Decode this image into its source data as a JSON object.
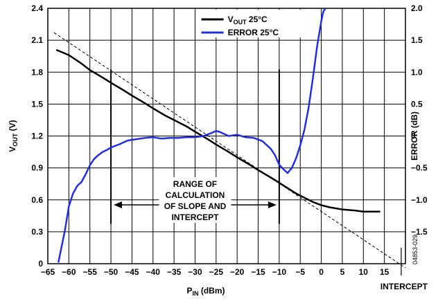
{
  "chart_data": {
    "type": "line",
    "x_axis": {
      "label_main": "P",
      "label_sub": "IN",
      "label_unit": " (dBm)",
      "range": [
        -65,
        20
      ],
      "ticks": [
        "−65",
        "−60",
        "−55",
        "−50",
        "−45",
        "−40",
        "−35",
        "−30",
        "−25",
        "−20",
        "−15",
        "−10",
        "−5",
        "0",
        "5",
        "10",
        "15"
      ],
      "tick_values": [
        -65,
        -60,
        -55,
        -50,
        -45,
        -40,
        -35,
        -30,
        -25,
        -20,
        -15,
        -10,
        -5,
        0,
        5,
        10,
        15
      ]
    },
    "y_left": {
      "label_main": "V",
      "label_sub": "OUT",
      "label_unit": " (V)",
      "range": [
        0,
        2.4
      ],
      "ticks": [
        "0",
        "0.3",
        "0.6",
        "0.9",
        "1.2",
        "1.5",
        "1.8",
        "2.1",
        "2.4"
      ],
      "tick_values": [
        0,
        0.3,
        0.6,
        0.9,
        1.2,
        1.5,
        1.8,
        2.1,
        2.4
      ]
    },
    "y_right": {
      "label": "ERROR (dB)",
      "range": [
        -2.0,
        2.0
      ],
      "ticks": [
        "2.0",
        "1.5",
        "1.0",
        "0.5",
        "0",
        "−0.5",
        "−1.0",
        "−1.5"
      ],
      "tick_values": [
        2.0,
        1.5,
        1.0,
        0.5,
        0,
        -0.5,
        -1.0,
        -1.5
      ]
    },
    "grid": true,
    "legend": {
      "placement": "top-center",
      "items": [
        {
          "main": "V",
          "sub": "OUT",
          "rest": " 25°C",
          "color": "#000000"
        },
        {
          "main": "ERROR 25°C",
          "sub": "",
          "rest": "",
          "color": "#1f2ee6"
        }
      ]
    },
    "series": [
      {
        "name": "VOUT 25°C",
        "axis": "left",
        "color": "#000000",
        "x": [
          -63,
          -60,
          -57,
          -55,
          -52,
          -50,
          -47,
          -45,
          -42,
          -40,
          -37,
          -35,
          -32,
          -30,
          -27,
          -25,
          -22,
          -20,
          -17,
          -15,
          -12,
          -10,
          -8,
          -6,
          -4,
          -2,
          0,
          2,
          5,
          8,
          10,
          12,
          14
        ],
        "y": [
          2.01,
          1.96,
          1.88,
          1.82,
          1.75,
          1.7,
          1.63,
          1.58,
          1.51,
          1.46,
          1.39,
          1.35,
          1.29,
          1.24,
          1.17,
          1.12,
          1.05,
          1.0,
          0.93,
          0.88,
          0.81,
          0.76,
          0.71,
          0.66,
          0.62,
          0.58,
          0.55,
          0.53,
          0.51,
          0.5,
          0.49,
          0.49,
          0.49
        ]
      },
      {
        "name": "ERROR 25°C",
        "axis": "right",
        "color": "#1f2ee6",
        "x": [
          -62.5,
          -61,
          -60,
          -59,
          -58,
          -57,
          -56,
          -55,
          -54,
          -53,
          -52,
          -51,
          -50,
          -48,
          -46,
          -44,
          -42,
          -40,
          -38,
          -36,
          -34,
          -32,
          -30,
          -28,
          -26,
          -25,
          -24,
          -22,
          -20,
          -18,
          -16,
          -14,
          -12,
          -11,
          -10,
          -9,
          -8,
          -7,
          -6,
          -5,
          -4,
          -3,
          -2,
          -1,
          0,
          0.5,
          1
        ],
        "y": [
          -1.98,
          -1.5,
          -1.1,
          -0.9,
          -0.78,
          -0.72,
          -0.6,
          -0.46,
          -0.36,
          -0.3,
          -0.25,
          -0.22,
          -0.18,
          -0.13,
          -0.07,
          -0.05,
          -0.03,
          -0.02,
          -0.04,
          -0.03,
          -0.03,
          -0.02,
          -0.02,
          0.0,
          0.05,
          0.08,
          0.06,
          0.0,
          0.02,
          -0.02,
          -0.03,
          -0.08,
          -0.2,
          -0.3,
          -0.45,
          -0.52,
          -0.58,
          -0.5,
          -0.35,
          -0.15,
          0.1,
          0.45,
          0.9,
          1.4,
          1.8,
          1.95,
          2.0
        ]
      }
    ],
    "reference_line": {
      "style": "dashed",
      "axis": "left",
      "x": [
        -65,
        20
      ],
      "y": [
        2.21,
        0.0
      ]
    },
    "markers": {
      "vertical_lines_x": [
        -50,
        -10
      ],
      "vertical_lines_y_range": [
        0.6,
        1.8
      ]
    },
    "annotations": {
      "range_lines": [
        "RANGE OF",
        "CALCULATION",
        "OF SLOPE AND",
        "INTERCEPT"
      ],
      "intercept_label": "INTERCEPT",
      "intercept_x": 19,
      "figure_id": "04853-029"
    }
  }
}
